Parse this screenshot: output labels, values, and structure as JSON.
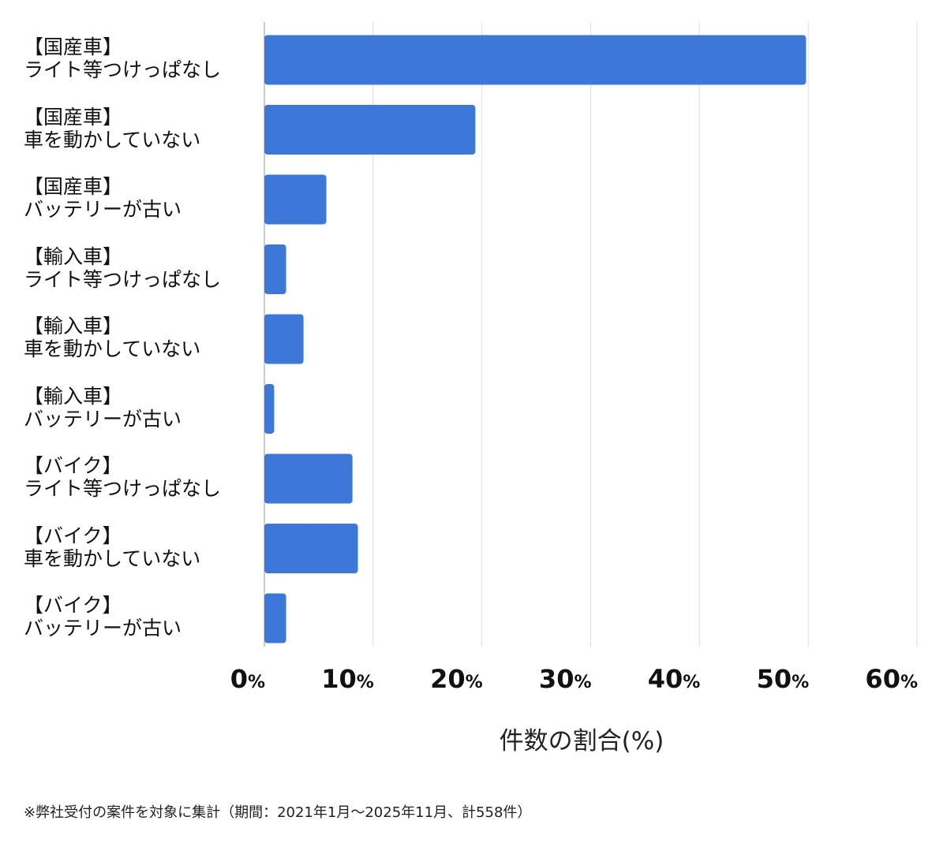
{
  "chart_data": {
    "type": "bar",
    "orientation": "horizontal",
    "categories": [
      [
        "【国産車】",
        "ライト等つけっぱなし"
      ],
      [
        "【国産車】",
        "車を動かしていない"
      ],
      [
        "【国産車】",
        "バッテリーが古い"
      ],
      [
        "【輸入車】",
        "ライト等つけっぱなし"
      ],
      [
        "【輸入車】",
        "車を動かしていない"
      ],
      [
        "【輸入車】",
        "バッテリーが古い"
      ],
      [
        "【バイク】",
        "ライト等つけっぱなし"
      ],
      [
        "【バイク】",
        "車を動かしていない"
      ],
      [
        "【バイク】",
        "バッテリーが古い"
      ]
    ],
    "values": [
      49.8,
      19.4,
      5.7,
      2.0,
      3.6,
      0.9,
      8.1,
      8.6,
      2.0
    ],
    "xlabel": "件数の割合(%)",
    "xlim": [
      0,
      60
    ],
    "xticks": [
      0,
      10,
      20,
      30,
      40,
      50,
      60
    ],
    "tick_suffix": "%",
    "grid": true,
    "bar_color": "#3c78d8",
    "grid_color": "#dddddd"
  },
  "footnote": "※弊社受付の案件を対象に集計（期間：2021年1月〜2025年11月、計558件）"
}
